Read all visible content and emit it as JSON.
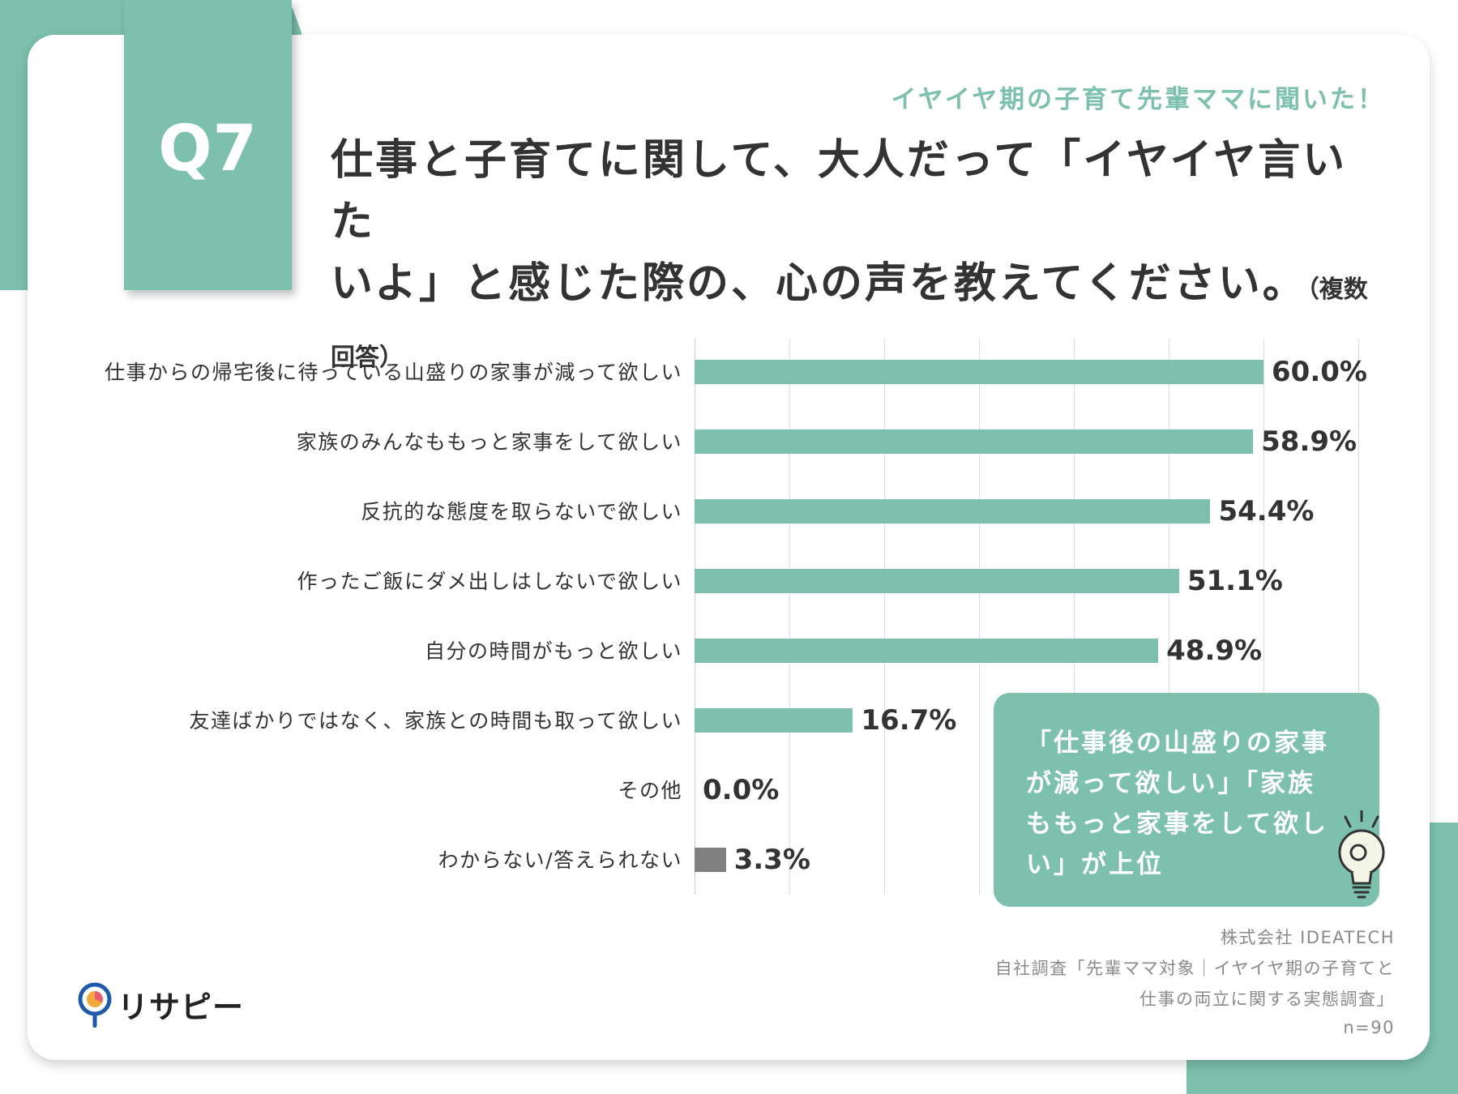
{
  "badge": "Q7",
  "header": {
    "subtitle": "イヤイヤ期の子育て先輩ママに聞いた！",
    "title_line1": "仕事と子育てに関して、大人だって「イヤイヤ言いた",
    "title_line2": "いよ」と感じた際の、心の声を教えてください。",
    "title_note": "（複数回答）"
  },
  "colors": {
    "accent": "#7cc0ad",
    "other_bar": "#808080",
    "text": "#333333"
  },
  "chart_data": {
    "type": "bar",
    "orientation": "horizontal",
    "categories": [
      "仕事からの帰宅後に待っている山盛りの家事が減って欲しい",
      "家族のみんなももっと家事をして欲しい",
      "反抗的な態度を取らないで欲しい",
      "作ったご飯にダメ出しはしないで欲しい",
      "自分の時間がもっと欲しい",
      "友達ばかりではなく、家族との時間も取って欲しい",
      "その他",
      "わからない/答えられない"
    ],
    "values": [
      60.0,
      58.9,
      54.4,
      51.1,
      48.9,
      16.7,
      0.0,
      3.3
    ],
    "value_labels": [
      "60.0%",
      "58.9%",
      "54.4%",
      "51.1%",
      "48.9%",
      "16.7%",
      "0.0%",
      "3.3%"
    ],
    "xlim": [
      0,
      70
    ],
    "grid": true,
    "title": "",
    "xlabel": "",
    "ylabel": ""
  },
  "callout": {
    "line1": "「仕事後の山盛りの家事",
    "line2": "が減って欲しい」「家族",
    "line3": "ももっと家事をして欲し",
    "line4": "い」が上位",
    "icon": "lightbulb-icon"
  },
  "source": {
    "company": "株式会社 IDEATECH",
    "survey_line1": "自社調査「先輩ママ対象｜イヤイヤ期の子育てと",
    "survey_line2": "仕事の両立に関する実態調査」",
    "n": "n=90"
  },
  "logo": {
    "text": "リサピー",
    "icon": "map-pin-icon"
  }
}
